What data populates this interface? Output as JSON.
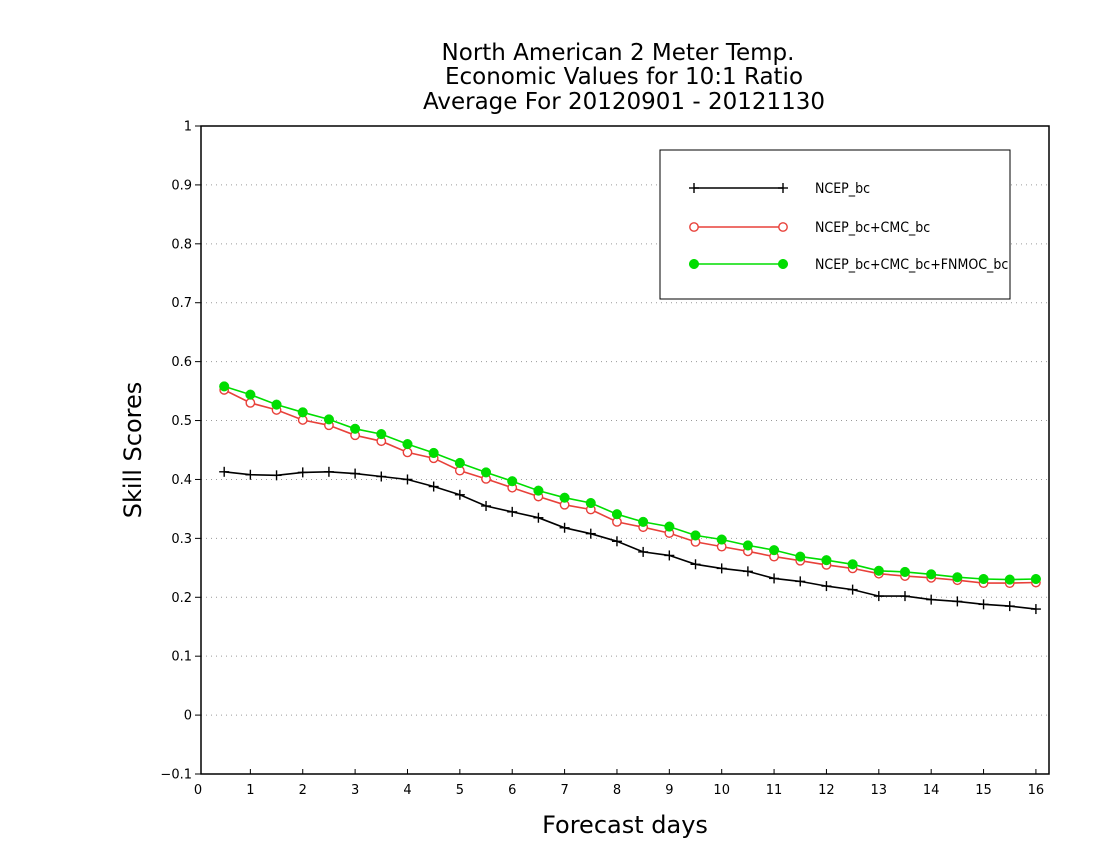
{
  "chart_data": {
    "type": "line",
    "title_lines": [
      "North American 2 Meter Temp.",
      "Economic Values for 10:1 Ratio",
      "Average For 20120901 - 20121130"
    ],
    "xlabel": "Forecast days",
    "ylabel": "Skill Scores",
    "xlim": [
      0,
      16.2
    ],
    "ylim": [
      -0.1,
      1
    ],
    "xticks": [
      0,
      1,
      2,
      3,
      4,
      5,
      6,
      7,
      8,
      9,
      10,
      11,
      12,
      13,
      14,
      15,
      16
    ],
    "yticks": [
      -0.1,
      0,
      0.1,
      0.2,
      0.3,
      0.4,
      0.5,
      0.6,
      0.7,
      0.8,
      0.9,
      1
    ],
    "ytick_labels": [
      "−0.1",
      "0",
      "0.1",
      "0.2",
      "0.3",
      "0.4",
      "0.5",
      "0.6",
      "0.7",
      "0.8",
      "0.9",
      "1"
    ],
    "grid": "horizontal dotted",
    "legend_position": "top-right",
    "x": [
      0.5,
      1.0,
      1.5,
      2.0,
      2.5,
      3.0,
      3.5,
      4.0,
      4.5,
      5.0,
      5.5,
      6.0,
      6.5,
      7.0,
      7.5,
      8.0,
      8.5,
      9.0,
      9.5,
      10.0,
      10.5,
      11.0,
      11.5,
      12.0,
      12.5,
      13.0,
      13.5,
      14.0,
      14.5,
      15.0,
      15.5,
      16.0
    ],
    "series": [
      {
        "name": "NCEP_bc",
        "color": "#000000",
        "marker": "plus",
        "values": [
          0.413,
          0.408,
          0.407,
          0.412,
          0.413,
          0.41,
          0.405,
          0.4,
          0.388,
          0.374,
          0.355,
          0.345,
          0.335,
          0.318,
          0.308,
          0.295,
          0.277,
          0.271,
          0.256,
          0.249,
          0.244,
          0.232,
          0.227,
          0.219,
          0.213,
          0.202,
          0.202,
          0.196,
          0.193,
          0.188,
          0.185,
          0.18
        ]
      },
      {
        "name": "NCEP_bc+CMC_bc",
        "color": "#e8413a",
        "marker": "open-circle",
        "values": [
          0.552,
          0.53,
          0.518,
          0.501,
          0.492,
          0.475,
          0.465,
          0.446,
          0.436,
          0.415,
          0.401,
          0.386,
          0.371,
          0.357,
          0.349,
          0.328,
          0.319,
          0.309,
          0.294,
          0.286,
          0.278,
          0.269,
          0.262,
          0.255,
          0.249,
          0.24,
          0.236,
          0.233,
          0.229,
          0.224,
          0.224,
          0.225
        ]
      },
      {
        "name": "NCEP_bc+CMC_bc+FNMOC_bc",
        "color": "#00dd00",
        "marker": "filled-circle",
        "values": [
          0.558,
          0.544,
          0.527,
          0.514,
          0.502,
          0.486,
          0.477,
          0.46,
          0.445,
          0.428,
          0.412,
          0.397,
          0.381,
          0.369,
          0.36,
          0.341,
          0.328,
          0.32,
          0.305,
          0.298,
          0.288,
          0.28,
          0.269,
          0.263,
          0.256,
          0.245,
          0.243,
          0.239,
          0.234,
          0.231,
          0.23,
          0.231
        ]
      }
    ]
  }
}
